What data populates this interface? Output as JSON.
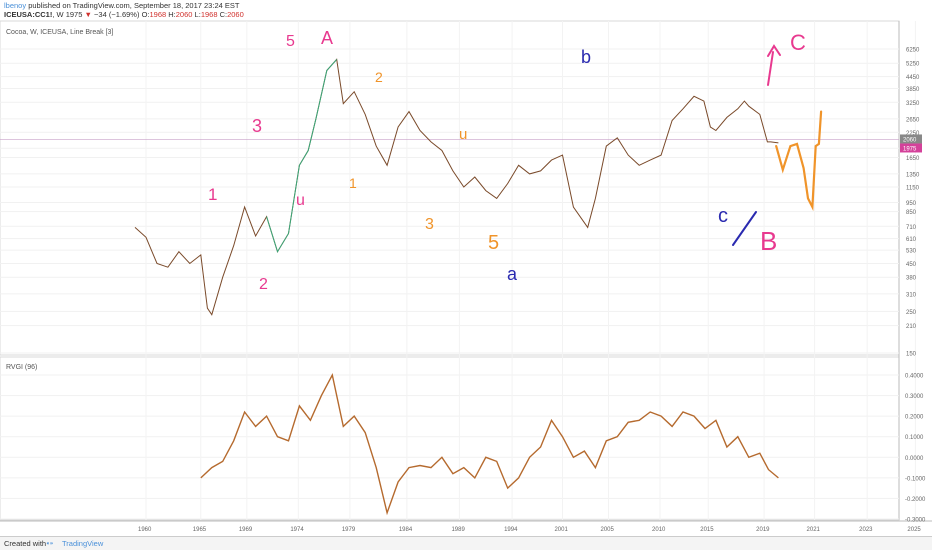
{
  "header": {
    "author": "lbenoy",
    "published": "published on TradingView.com, September 18, 2017 23:24 EST",
    "symbol": "ICEUSA:CC1!",
    "interval": "W",
    "last": "1975",
    "change_arrow": "▼",
    "change": "−34 (−1.69%)",
    "o_label": "O:",
    "o": "1968",
    "h_label": "H:",
    "h": "2060",
    "l_label": "L:",
    "l": "1968",
    "c_label": "C:",
    "c": "2060"
  },
  "main_pane": {
    "legend": "Cocoa, W, ICEUSA, Line Break [3]",
    "price_badges": [
      "2060",
      "1975"
    ],
    "line_color": "#7a4a2a",
    "up_color": "#3aa87a"
  },
  "rvgi_pane": {
    "legend": "RVGI (96)",
    "line_color": "#b56a2e"
  },
  "annotations": [
    {
      "text": "5",
      "color": "#e8398f"
    },
    {
      "text": "A",
      "color": "#e8398f"
    },
    {
      "text": "1",
      "color": "#e8398f"
    },
    {
      "text": "3",
      "color": "#e8398f"
    },
    {
      "text": "u",
      "color": "#e8398f"
    },
    {
      "text": "2",
      "color": "#e8398f"
    },
    {
      "text": "2",
      "color": "#f0942a"
    },
    {
      "text": "1",
      "color": "#f0942a"
    },
    {
      "text": "u",
      "color": "#f0942a"
    },
    {
      "text": "3",
      "color": "#f0942a"
    },
    {
      "text": "5",
      "color": "#f0942a"
    },
    {
      "text": "a",
      "color": "#2a2ab0"
    },
    {
      "text": "b",
      "color": "#2a2ab0"
    },
    {
      "text": "c",
      "color": "#2a2ab0"
    },
    {
      "text": "B",
      "color": "#e8398f"
    },
    {
      "text": "C",
      "color": "#e8398f"
    }
  ],
  "footer": {
    "created": "Created with",
    "brand": "TradingView"
  },
  "chart_data": [
    {
      "type": "line",
      "title": "Cocoa, W, ICEUSA, Line Break [3]",
      "x_ticks": [
        "1960",
        "1965",
        "1969",
        "1974",
        "1979",
        "1984",
        "1989",
        "1994",
        "2001",
        "2005",
        "2010",
        "2015",
        "2019",
        "2021",
        "2023",
        "2025",
        "2027"
      ],
      "y_ticks": [
        "6250",
        "5250",
        "4450",
        "3850",
        "3250",
        "2650",
        "2250",
        "1850",
        "1650",
        "1350",
        "1150",
        "950",
        "850",
        "710",
        "610",
        "530",
        "450",
        "380",
        "310",
        "250",
        "210",
        "150"
      ],
      "y_scale": "log",
      "series": [
        {
          "x": [
            1959.0,
            1960.0,
            1961.0,
            1962.0,
            1963.0,
            1964.0,
            1965.0,
            1965.6,
            1966.0,
            1967.0,
            1968.0,
            1969.0,
            1970.0,
            1971.0,
            1972.0,
            1973.0,
            1974.0,
            1974.8,
            1975.5,
            1976.5,
            1977.4,
            1978.0,
            1979.0,
            1980.0,
            1981.0,
            1982.0,
            1983.0,
            1984.0,
            1985.0,
            1986.0,
            1987.0,
            1988.0,
            1989.0,
            1990.0,
            1991.0,
            1992.0,
            1993.0,
            1994.0,
            1995.0,
            1996.0,
            1997.0,
            1998.0,
            1999.0,
            2000.3,
            2001.0,
            2002.0,
            2003.0,
            2004.0,
            2005.0,
            2006.0,
            2007.0,
            2008.0,
            2009.0,
            2010.0,
            2010.9,
            2011.5,
            2012.0,
            2013.0,
            2014.0,
            2014.6,
            2015.0,
            2016.0,
            2016.7,
            2017.0,
            2017.7
          ],
          "y": [
            700,
            620,
            450,
            430,
            520,
            450,
            500,
            260,
            240,
            380,
            560,
            900,
            630,
            800,
            520,
            650,
            1500,
            1800,
            2650,
            4800,
            5500,
            3200,
            3700,
            2800,
            1900,
            1500,
            2400,
            2900,
            2300,
            2000,
            1800,
            1400,
            1150,
            1300,
            1100,
            1000,
            1200,
            1500,
            1350,
            1400,
            1600,
            1700,
            900,
            700,
            1000,
            1900,
            2100,
            1700,
            1500,
            1600,
            1700,
            2600,
            3000,
            3500,
            3300,
            2400,
            2300,
            2700,
            3000,
            3300,
            3100,
            2800,
            2000,
            2000,
            1975
          ]
        }
      ],
      "projection": {
        "x": [
          2017.5,
          2018.1,
          2018.8,
          2019.4,
          2020.0,
          2020.4,
          2020.8,
          2021.1,
          2021.4,
          2021.6
        ],
        "y": [
          1900,
          1420,
          1900,
          1950,
          1450,
          1000,
          900,
          1900,
          1950,
          2900
        ]
      }
    },
    {
      "type": "line",
      "title": "RVGI (96)",
      "y_ticks": [
        "0.4000",
        "0.3000",
        "0.2000",
        "0.1000",
        "0.0000",
        "-0.1000",
        "-0.2000",
        "-0.3000"
      ],
      "series": [
        {
          "x": [
            1965.0,
            1966.0,
            1967.0,
            1968.0,
            1969.0,
            1970.0,
            1971.0,
            1972.0,
            1973.0,
            1974.0,
            1975.0,
            1976.0,
            1977.0,
            1978.0,
            1979.0,
            1980.0,
            1981.0,
            1982.0,
            1983.0,
            1984.0,
            1985.0,
            1986.0,
            1987.0,
            1988.0,
            1989.0,
            1990.0,
            1991.0,
            1992.0,
            1993.0,
            1994.0,
            1995.0,
            1996.0,
            1997.0,
            1998.0,
            1999.0,
            2000.0,
            2001.0,
            2002.0,
            2003.0,
            2004.0,
            2005.0,
            2006.0,
            2007.0,
            2008.0,
            2009.0,
            2010.0,
            2011.0,
            2012.0,
            2013.0,
            2014.0,
            2015.0,
            2016.0,
            2016.8,
            2017.7
          ],
          "y": [
            -0.1,
            -0.05,
            -0.02,
            0.08,
            0.22,
            0.15,
            0.2,
            0.1,
            0.08,
            0.25,
            0.18,
            0.3,
            0.4,
            0.15,
            0.2,
            0.12,
            -0.05,
            -0.27,
            -0.12,
            -0.05,
            -0.04,
            -0.05,
            0.0,
            -0.08,
            -0.05,
            -0.1,
            0.0,
            -0.02,
            -0.15,
            -0.1,
            0.0,
            0.05,
            0.18,
            0.1,
            0.0,
            0.03,
            -0.05,
            0.08,
            0.1,
            0.17,
            0.18,
            0.22,
            0.2,
            0.15,
            0.22,
            0.2,
            0.14,
            0.18,
            0.05,
            0.1,
            0.0,
            0.02,
            -0.06,
            -0.1
          ]
        }
      ]
    }
  ]
}
